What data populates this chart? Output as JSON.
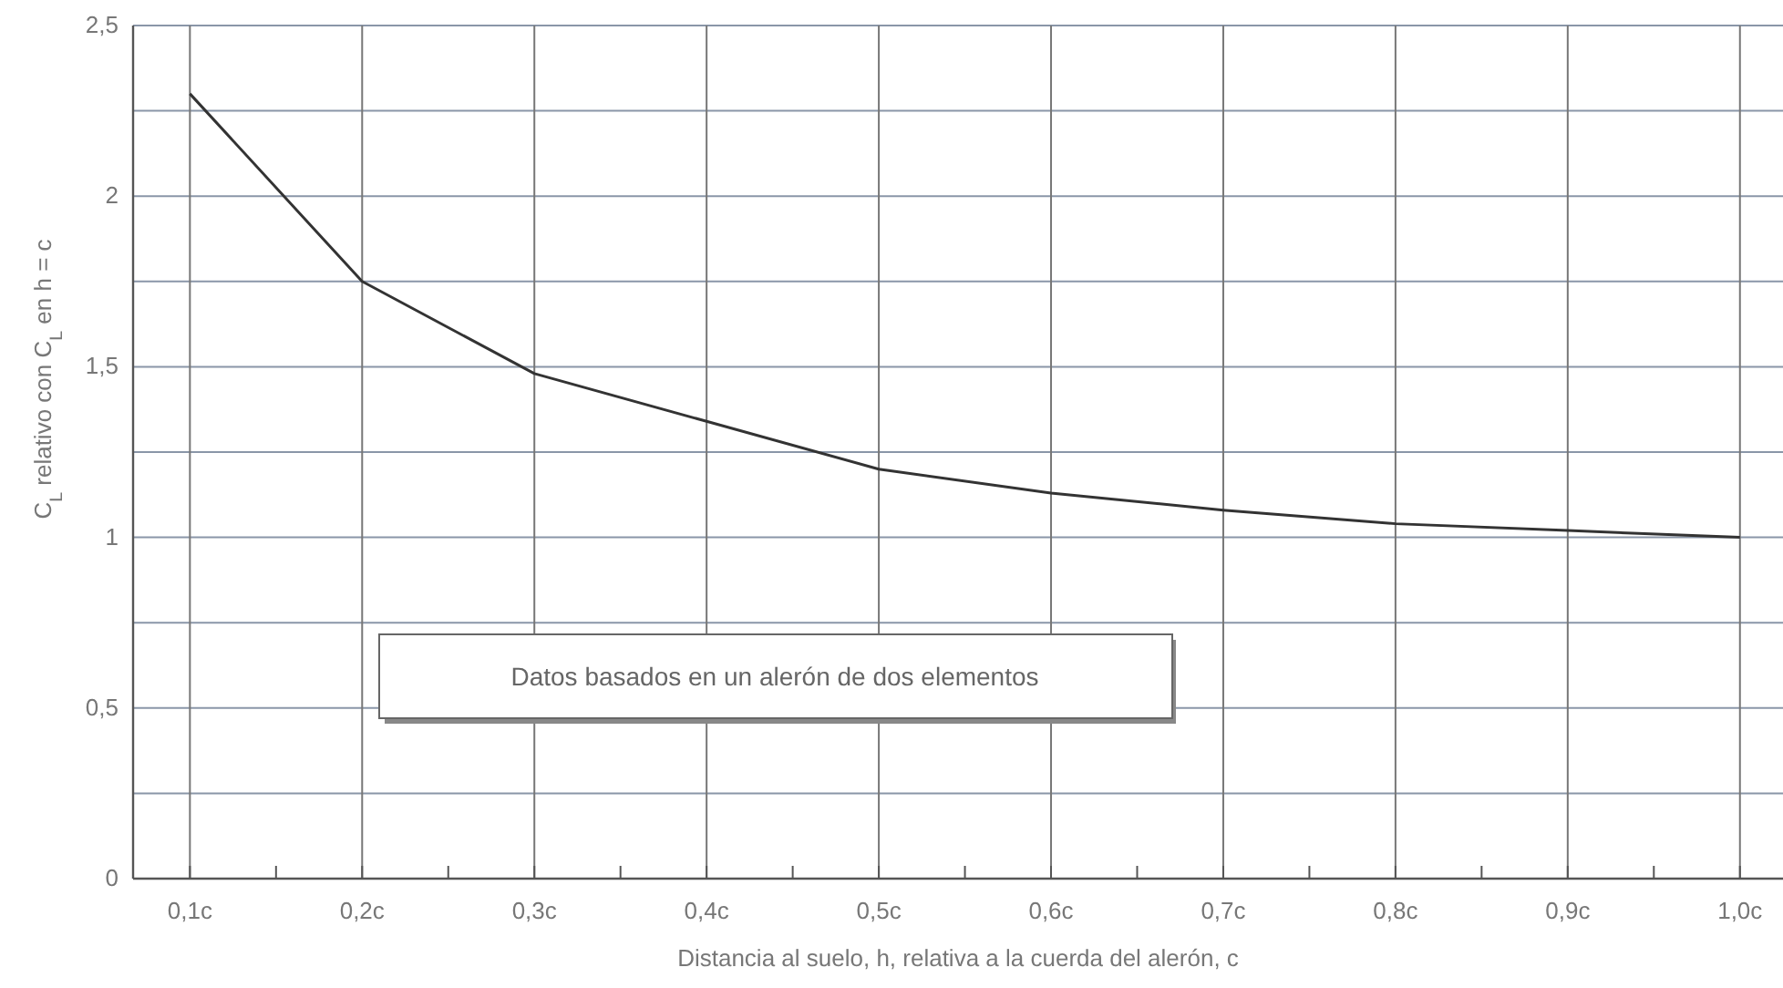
{
  "chart_data": {
    "type": "line",
    "xlabel": "Distancia al suelo, h, relativa a la cuerda del alerón, c",
    "ylabel": "C$_{L}$ relativo con C$_{L}$ en h = c",
    "annotations": [
      "Datos basados en un alerón de dos elementos"
    ],
    "x": [
      0.1,
      0.2,
      0.3,
      0.4,
      0.5,
      0.6,
      0.7,
      0.8,
      0.9,
      1.0
    ],
    "series": [
      {
        "color": "#333333",
        "values": [
          2.3,
          1.75,
          1.48,
          1.34,
          1.2,
          1.13,
          1.08,
          1.04,
          1.02,
          1.0
        ]
      }
    ],
    "xlim": [
      0.067,
      1.025
    ],
    "xticks": [
      {
        "value": 0.1,
        "label": "0,1c"
      },
      {
        "value": 0.15,
        "label": null
      },
      {
        "value": 0.2,
        "label": "0,2c"
      },
      {
        "value": 0.25,
        "label": null
      },
      {
        "value": 0.3,
        "label": "0,3c"
      },
      {
        "value": 0.35,
        "label": null
      },
      {
        "value": 0.4,
        "label": "0,4c"
      },
      {
        "value": 0.45,
        "label": null
      },
      {
        "value": 0.5,
        "label": "0,5c"
      },
      {
        "value": 0.55,
        "label": null
      },
      {
        "value": 0.6,
        "label": "0,6c"
      },
      {
        "value": 0.65,
        "label": null
      },
      {
        "value": 0.7,
        "label": "0,7c"
      },
      {
        "value": 0.75,
        "label": null
      },
      {
        "value": 0.8,
        "label": "0,8c"
      },
      {
        "value": 0.85,
        "label": null
      },
      {
        "value": 0.9,
        "label": "0,9c"
      },
      {
        "value": 0.95,
        "label": null
      },
      {
        "value": 1.0,
        "label": "1,0c"
      }
    ],
    "ylim": [
      0,
      2.5
    ],
    "yticks": [
      0,
      {
        "value": 0.25,
        "label": null
      },
      {
        "value": 0.5,
        "label": "0,5"
      },
      {
        "value": 0.75,
        "label": null
      },
      1,
      {
        "value": 1.25,
        "label": null
      },
      {
        "value": 1.5,
        "label": "1,5"
      },
      {
        "value": 1.75,
        "label": null
      },
      2,
      {
        "value": 2.25,
        "label": null
      },
      {
        "value": 2.5,
        "label": "2,5"
      }
    ],
    "grid": true,
    "marker": "none",
    "line_style": "solid"
  }
}
